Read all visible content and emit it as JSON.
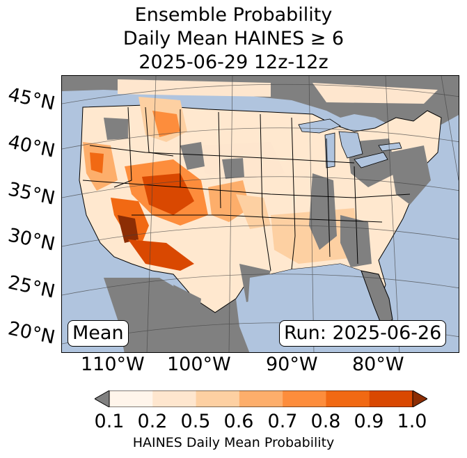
{
  "title": {
    "line1": "Ensemble Probability",
    "line2": "Daily Mean HAINES ≥ 6",
    "line3": "2025-06-29 12z-12z"
  },
  "map": {
    "left_box": "Mean",
    "right_box": "Run: 2025-06-26",
    "ocean_color": "#b0c4de",
    "land_nodata_color": "#808080",
    "latitude_labels": [
      "45°N",
      "40°N",
      "35°N",
      "30°N",
      "25°N",
      "20°N"
    ],
    "longitude_labels": [
      "110°W",
      "100°W",
      "90°W",
      "80°W"
    ]
  },
  "colorbar": {
    "label": "HAINES Daily Mean Probability",
    "ticks": [
      "0.1",
      "0.2",
      "0.5",
      "0.6",
      "0.7",
      "0.8",
      "0.9",
      "1.0"
    ],
    "under_color": "#808080",
    "colors": [
      "#fff5eb",
      "#fee6ce",
      "#fdd0a2",
      "#fdae6b",
      "#fd8d3c",
      "#f16913",
      "#d94801"
    ],
    "over_color": "#8c2d04"
  }
}
